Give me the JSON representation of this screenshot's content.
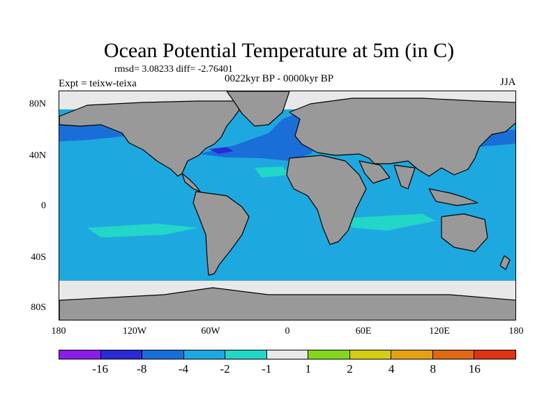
{
  "title": "Ocean Potential Temperature at 5m (in C)",
  "stats": "rmsd= 3.08233  diff= -2.76401",
  "expt": "Expt = teixw-teixa",
  "period": "0022kyr BP - 0000kyr BP",
  "season": "JJA",
  "lat_labels": [
    "80N",
    "40N",
    "0",
    "40S",
    "80S"
  ],
  "lon_labels": [
    "180",
    "120W",
    "60W",
    "0",
    "60E",
    "120E",
    "180"
  ],
  "colorbar": {
    "colors": [
      "#8a1ee8",
      "#2a2ad6",
      "#1a6ed8",
      "#1ea8e0",
      "#22d6c8",
      "#e8e8e8",
      "#82d61e",
      "#d6cc14",
      "#e6a014",
      "#e06a14",
      "#e03214"
    ],
    "labels": [
      "-16",
      "-8",
      "-4",
      "-2",
      "-1",
      "1",
      "2",
      "4",
      "8",
      "16"
    ]
  },
  "colors": {
    "land": "#999999",
    "ocean_main": "#1ea8e0",
    "ocean_cool": "#1a6ed8",
    "ocean_cold": "#2a2ad6",
    "ocean_mild": "#22d6c8",
    "ice": "#e8e8e8"
  }
}
